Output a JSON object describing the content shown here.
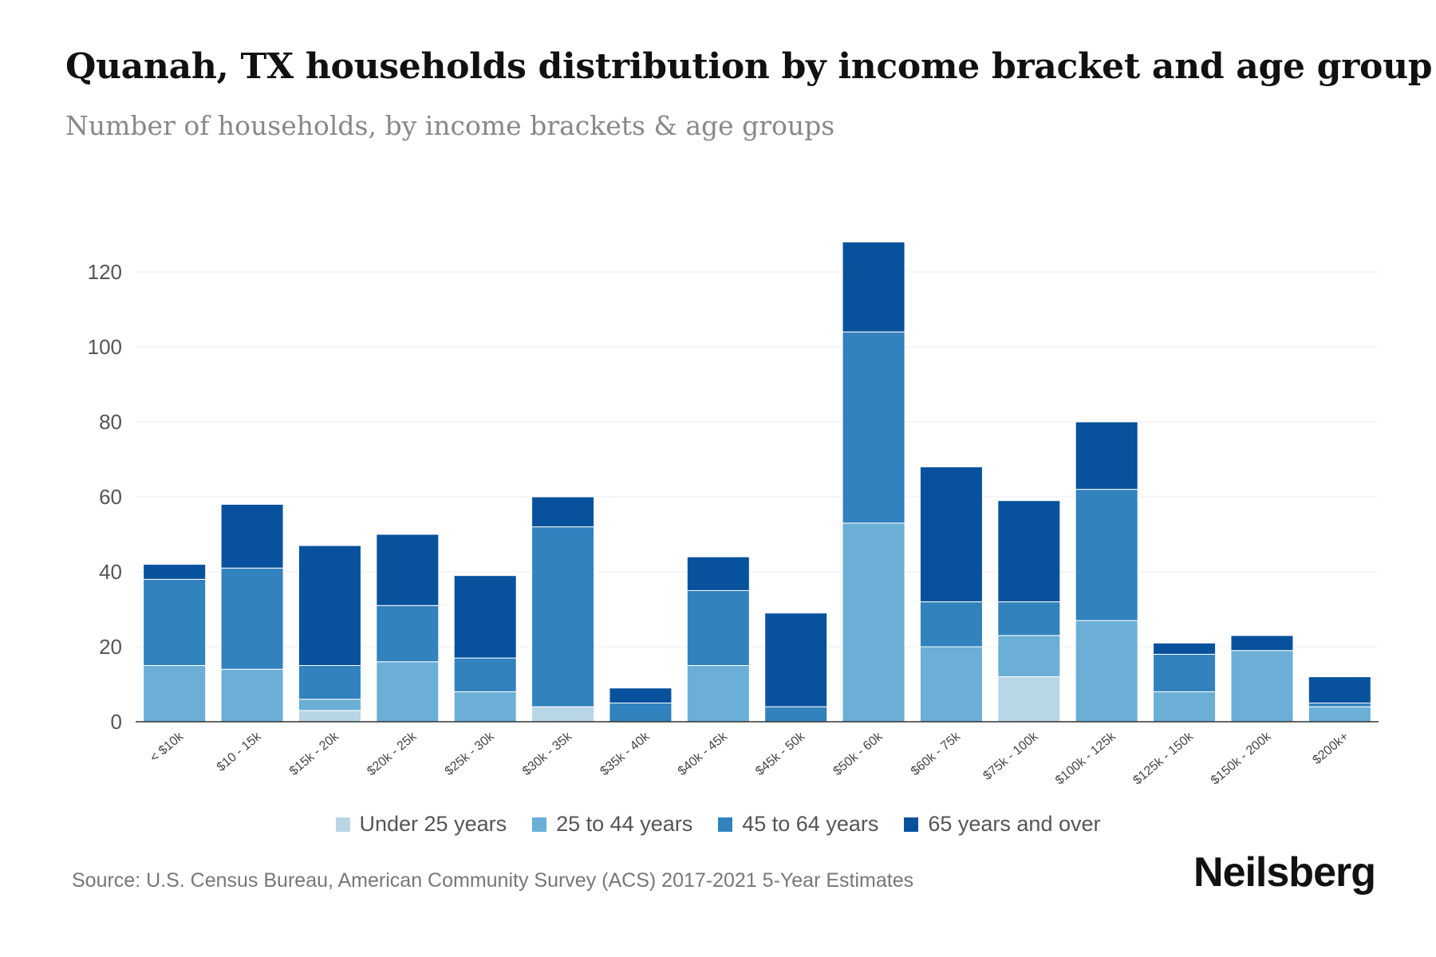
{
  "title": "Quanah, TX households distribution by income bracket and age group",
  "subtitle": "Number of households, by income brackets & age groups",
  "source": "Source: U.S. Census Bureau, American Community Survey (ACS) 2017-2021 5-Year Estimates",
  "brand": "Neilsberg",
  "chart_data": {
    "type": "bar",
    "stacked": true,
    "categories": [
      "< $10k",
      "$10 - 15k",
      "$15k - 20k",
      "$20k - 25k",
      "$25k - 30k",
      "$30k - 35k",
      "$35k - 40k",
      "$40k - 45k",
      "$45k - 50k",
      "$50k - 60k",
      "$60k - 75k",
      "$75k - 100k",
      "$100k - 125k",
      "$125k - 150k",
      "$150k - 200k",
      "$200k+"
    ],
    "series": [
      {
        "name": "Under 25 years",
        "color": "#b8d6e6",
        "values": [
          0,
          0,
          3,
          0,
          0,
          4,
          0,
          0,
          0,
          0,
          0,
          12,
          0,
          0,
          0,
          0
        ]
      },
      {
        "name": "25 to 44 years",
        "color": "#6baed6",
        "values": [
          15,
          14,
          3,
          16,
          8,
          0,
          0,
          15,
          0,
          53,
          20,
          11,
          27,
          8,
          19,
          4
        ]
      },
      {
        "name": "45 to 64 years",
        "color": "#3182bd",
        "values": [
          23,
          27,
          9,
          15,
          9,
          48,
          5,
          20,
          4,
          51,
          12,
          9,
          35,
          10,
          0,
          1
        ]
      },
      {
        "name": "65 years and over",
        "color": "#08519c",
        "values": [
          4,
          17,
          32,
          19,
          22,
          8,
          4,
          9,
          25,
          24,
          36,
          27,
          18,
          3,
          4,
          7
        ]
      }
    ],
    "yticks": [
      0,
      20,
      40,
      60,
      80,
      100,
      120
    ],
    "ylim": [
      0,
      130
    ],
    "grid": true,
    "legend": "bottom-center"
  }
}
